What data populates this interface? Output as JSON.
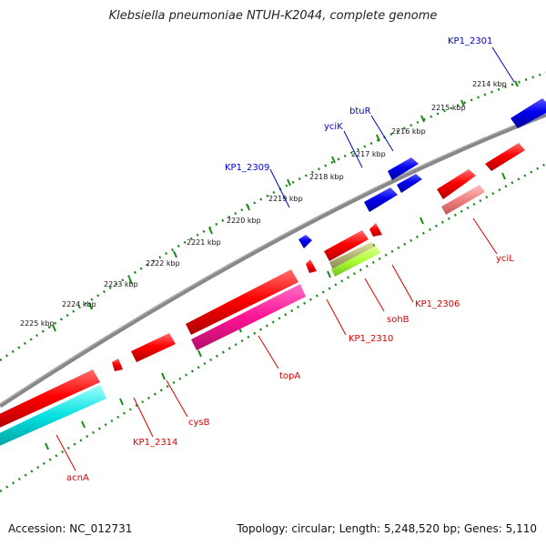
{
  "title": "Klebsiella pneumoniae NTUH-K2044, complete genome",
  "footer": {
    "accession": "Accession: NC_012731",
    "topology": "Topology: circular; Length: 5,248,520 bp; Genes: 5,110"
  },
  "colors": {
    "backbone": "#888888",
    "ticks": "#1a8a1a",
    "forward_gene": "#ff0000",
    "forward_label": "#0000cc",
    "reverse_label": "#dd0000"
  },
  "kbp_marks": [
    {
      "label": "2214 kbp",
      "pos": 2214
    },
    {
      "label": "2215 kbp",
      "pos": 2215
    },
    {
      "label": "2216 kbp",
      "pos": 2216
    },
    {
      "label": "2217 kbp",
      "pos": 2217
    },
    {
      "label": "2218 kbp",
      "pos": 2218
    },
    {
      "label": "2219 kbp",
      "pos": 2219
    },
    {
      "label": "2220 kbp",
      "pos": 2220
    },
    {
      "label": "2221 kbp",
      "pos": 2221
    },
    {
      "label": "2222 kbp",
      "pos": 2222
    },
    {
      "label": "2223 kbp",
      "pos": 2223
    },
    {
      "label": "2224 kbp",
      "pos": 2224
    },
    {
      "label": "2225 kbp",
      "pos": 2225
    }
  ],
  "gene_labels": [
    {
      "name": "KP1_2301",
      "color": "#0000cc"
    },
    {
      "name": "btuR",
      "color": "#0000cc"
    },
    {
      "name": "yciK",
      "color": "#0000cc"
    },
    {
      "name": "KP1_2309",
      "color": "#0000cc"
    },
    {
      "name": "yciL",
      "color": "#dd0000"
    },
    {
      "name": "KP1_2306",
      "color": "#dd0000"
    },
    {
      "name": "sohB",
      "color": "#dd0000"
    },
    {
      "name": "KP1_2310",
      "color": "#dd0000"
    },
    {
      "name": "topA",
      "color": "#dd0000"
    },
    {
      "name": "cysB",
      "color": "#dd0000"
    },
    {
      "name": "KP1_2314",
      "color": "#dd0000"
    },
    {
      "name": "acnA",
      "color": "#dd0000"
    }
  ]
}
